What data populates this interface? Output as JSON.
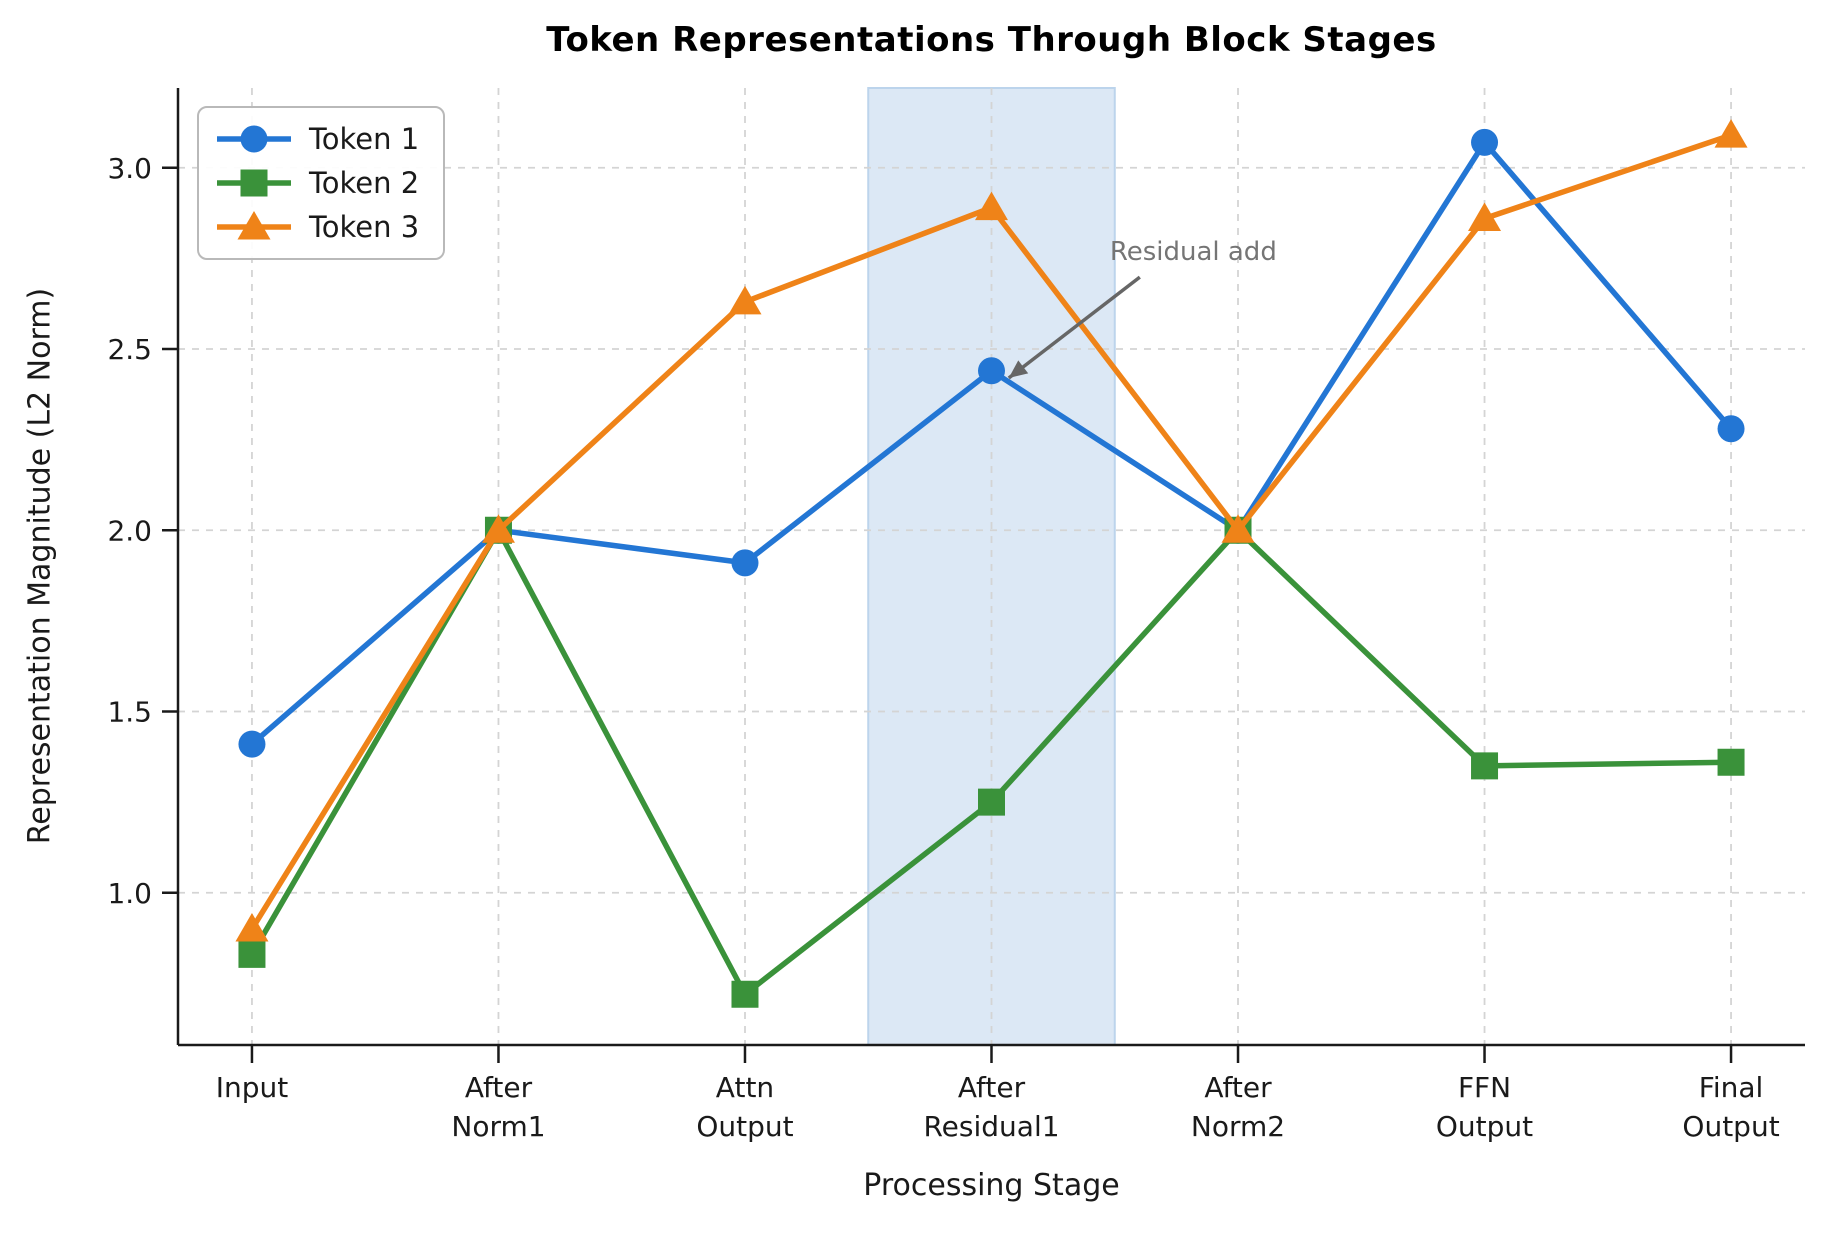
{
  "figure": {
    "title": "Token Representations Through Block Stages",
    "xlabel": "Processing Stage",
    "ylabel": "Representation Magnitude (L2 Norm)"
  },
  "chart_data": {
    "type": "line",
    "title": "Token Representations Through Block Stages",
    "xlabel": "Processing Stage",
    "ylabel": "Representation Magnitude (L2 Norm)",
    "categories": [
      "Input",
      "After\nNorm1",
      "Attn\nOutput",
      "After\nResidual1",
      "After\nNorm2",
      "FFN\nOutput",
      "Final\nOutput"
    ],
    "series": [
      {
        "name": "Token 1",
        "marker": "circle",
        "color": "#2376d4",
        "values": [
          1.41,
          2.0,
          1.91,
          2.44,
          2.0,
          3.07,
          2.28
        ]
      },
      {
        "name": "Token 2",
        "marker": "square",
        "color": "#3a923a",
        "values": [
          0.83,
          2.0,
          0.72,
          1.25,
          2.0,
          1.35,
          1.36
        ]
      },
      {
        "name": "Token 3",
        "marker": "triangle",
        "color": "#ef8318",
        "values": [
          0.9,
          2.0,
          2.63,
          2.89,
          2.0,
          2.86,
          3.09
        ]
      }
    ],
    "yticks": [
      1.0,
      1.5,
      2.0,
      2.5,
      3.0
    ],
    "ylim": [
      0.58,
      3.22
    ],
    "xlim": [
      -0.3,
      6.3
    ],
    "grid": true,
    "grid_style": "dashed",
    "legend_position": "upper left",
    "highlight_band": {
      "x_start": 2.5,
      "x_end": 3.5,
      "fill": "#dce8f5",
      "edge": "#bcd4ec"
    },
    "annotation": {
      "text": "Residual add",
      "color": "#757575",
      "arrow_color": "#666666",
      "text_xy": [
        3.48,
        2.77
      ],
      "arrow_tip_xy": [
        3.07,
        2.42
      ],
      "points_to": {
        "series": "Token 1",
        "category": "After\nResidual1",
        "value": 2.44
      }
    }
  }
}
